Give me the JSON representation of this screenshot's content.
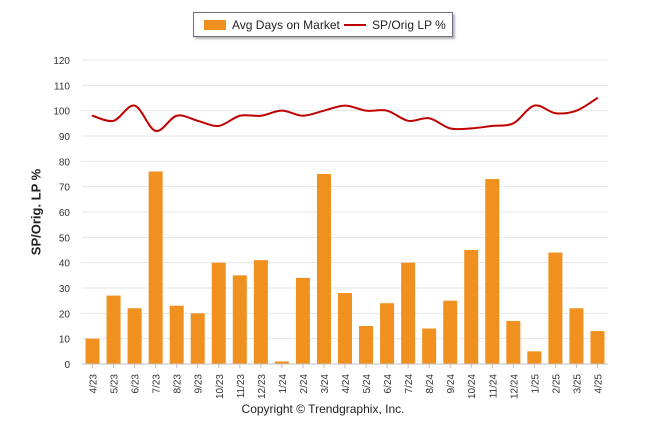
{
  "chart_data": {
    "type": "bar",
    "categories": [
      "4/23",
      "5/23",
      "6/23",
      "7/23",
      "8/23",
      "9/23",
      "10/23",
      "11/23",
      "12/23",
      "1/24",
      "2/24",
      "3/24",
      "4/24",
      "5/24",
      "6/24",
      "7/24",
      "8/24",
      "9/24",
      "10/24",
      "11/24",
      "12/24",
      "1/25",
      "2/25",
      "3/25",
      "4/25"
    ],
    "series": [
      {
        "name": "Avg Days on Market",
        "type": "bar",
        "color": "#F0901E",
        "values": [
          10,
          27,
          22,
          76,
          23,
          20,
          40,
          35,
          41,
          1,
          34,
          75,
          28,
          15,
          24,
          40,
          14,
          25,
          45,
          73,
          17,
          5,
          44,
          22,
          13
        ]
      },
      {
        "name": "SP/Orig LP %",
        "type": "line",
        "color": "#C00000",
        "values": [
          98,
          96,
          102,
          92,
          98,
          96,
          94,
          98,
          98,
          100,
          98,
          100,
          102,
          100,
          100,
          96,
          97,
          93,
          93,
          94,
          95,
          102,
          99,
          100,
          105
        ]
      }
    ],
    "ylabel": "SP/Orig. LP %",
    "ylim": [
      0,
      120
    ],
    "yticks": [
      0,
      10,
      20,
      30,
      40,
      50,
      60,
      70,
      80,
      90,
      100,
      110,
      120
    ],
    "grid": true,
    "legend": "top-center"
  },
  "footer": {
    "copyright": "Copyright © Trendgraphix, Inc."
  }
}
